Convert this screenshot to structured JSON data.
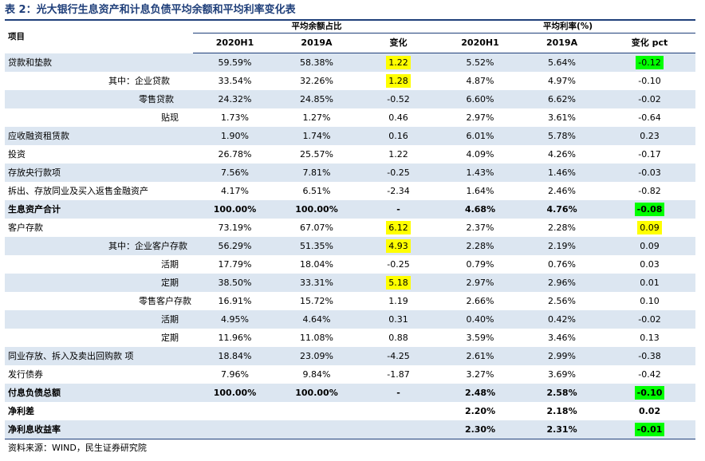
{
  "title": "表 2：光大银行生息资产和计息负债平均余额和平均利率变化表",
  "header": {
    "item": "项目",
    "group1": "平均余额占比",
    "group2": "平均利率(%)",
    "cols": [
      "2020H1",
      "2019A",
      "变化",
      "2020H1",
      "2019A",
      "变化 pct"
    ]
  },
  "rows": [
    {
      "name": "贷款和垫款",
      "indent": 0,
      "shade": true,
      "bold": false,
      "v": [
        "59.59%",
        "58.38%",
        "1.22",
        "5.52%",
        "5.64%",
        "-0.12"
      ],
      "hl": {
        "2": "yellow",
        "5": "green"
      }
    },
    {
      "name": "其中：企业贷款",
      "indent": 1,
      "shade": false,
      "bold": false,
      "v": [
        "33.54%",
        "32.26%",
        "1.28",
        "4.87%",
        "4.97%",
        "-0.10"
      ],
      "hl": {
        "2": "yellow"
      }
    },
    {
      "name": "零售贷款",
      "indent": 2,
      "shade": true,
      "bold": false,
      "v": [
        "24.32%",
        "24.85%",
        "-0.52",
        "6.60%",
        "6.62%",
        "-0.02"
      ],
      "hl": {}
    },
    {
      "name": "贴现",
      "indent": 3,
      "shade": false,
      "bold": false,
      "v": [
        "1.73%",
        "1.27%",
        "0.46",
        "2.97%",
        "3.61%",
        "-0.64"
      ],
      "hl": {}
    },
    {
      "name": "应收融资租赁款",
      "indent": 0,
      "shade": true,
      "bold": false,
      "v": [
        "1.90%",
        "1.74%",
        "0.16",
        "6.01%",
        "5.78%",
        "0.23"
      ],
      "hl": {}
    },
    {
      "name": "投资",
      "indent": 0,
      "shade": false,
      "bold": false,
      "v": [
        "26.78%",
        "25.57%",
        "1.22",
        "4.09%",
        "4.26%",
        "-0.17"
      ],
      "hl": {}
    },
    {
      "name": "存放央行款项",
      "indent": 0,
      "shade": true,
      "bold": false,
      "v": [
        "7.56%",
        "7.81%",
        "-0.25",
        "1.43%",
        "1.46%",
        "-0.03"
      ],
      "hl": {}
    },
    {
      "name": "拆出、存放同业及买入返售金融资产",
      "indent": 0,
      "shade": false,
      "bold": false,
      "v": [
        "4.17%",
        "6.51%",
        "-2.34",
        "1.64%",
        "2.46%",
        "-0.82"
      ],
      "hl": {}
    },
    {
      "name": "生息资产合计",
      "indent": 0,
      "shade": true,
      "bold": true,
      "v": [
        "100.00%",
        "100.00%",
        "-",
        "4.68%",
        "4.76%",
        "-0.08"
      ],
      "hl": {
        "5": "green"
      }
    },
    {
      "name": "客户存款",
      "indent": 0,
      "shade": false,
      "bold": false,
      "v": [
        "73.19%",
        "67.07%",
        "6.12",
        "2.37%",
        "2.28%",
        "0.09"
      ],
      "hl": {
        "2": "yellow",
        "5": "yellow"
      }
    },
    {
      "name": "其中：企业客户存款",
      "indent": 1,
      "shade": true,
      "bold": false,
      "v": [
        "56.29%",
        "51.35%",
        "4.93",
        "2.28%",
        "2.19%",
        "0.09"
      ],
      "hl": {
        "2": "yellow"
      }
    },
    {
      "name": "活期",
      "indent": 3,
      "shade": false,
      "bold": false,
      "v": [
        "17.79%",
        "18.04%",
        "-0.25",
        "0.79%",
        "0.76%",
        "0.03"
      ],
      "hl": {}
    },
    {
      "name": "定期",
      "indent": 3,
      "shade": true,
      "bold": false,
      "v": [
        "38.50%",
        "33.31%",
        "5.18",
        "2.97%",
        "2.96%",
        "0.01"
      ],
      "hl": {
        "2": "yellow"
      }
    },
    {
      "name": "零售客户存款",
      "indent": 2,
      "shade": false,
      "bold": false,
      "v": [
        "16.91%",
        "15.72%",
        "1.19",
        "2.66%",
        "2.56%",
        "0.10"
      ],
      "hl": {}
    },
    {
      "name": "活期",
      "indent": 3,
      "shade": true,
      "bold": false,
      "v": [
        "4.95%",
        "4.64%",
        "0.31",
        "0.40%",
        "0.42%",
        "-0.02"
      ],
      "hl": {}
    },
    {
      "name": "定期",
      "indent": 3,
      "shade": false,
      "bold": false,
      "v": [
        "11.96%",
        "11.08%",
        "0.88",
        "3.59%",
        "3.46%",
        "0.13"
      ],
      "hl": {}
    },
    {
      "name": "同业存放、拆入及卖出回购款 项",
      "indent": 0,
      "shade": true,
      "bold": false,
      "v": [
        "18.84%",
        "23.09%",
        "-4.25",
        "2.61%",
        "2.99%",
        "-0.38"
      ],
      "hl": {}
    },
    {
      "name": "发行债券",
      "indent": 0,
      "shade": false,
      "bold": false,
      "v": [
        "7.96%",
        "9.84%",
        "-1.87",
        "3.27%",
        "3.69%",
        "-0.42"
      ],
      "hl": {}
    },
    {
      "name": "付息负债总额",
      "indent": 0,
      "shade": true,
      "bold": true,
      "v": [
        "100.00%",
        "100.00%",
        "-",
        "2.48%",
        "2.58%",
        "-0.10"
      ],
      "hl": {
        "5": "green"
      }
    },
    {
      "name": "净利差",
      "indent": 0,
      "shade": false,
      "bold": true,
      "v": [
        "",
        "",
        "",
        "2.20%",
        "2.18%",
        "0.02"
      ],
      "hl": {}
    },
    {
      "name": "净利息收益率",
      "indent": 0,
      "shade": true,
      "bold": true,
      "v": [
        "",
        "",
        "",
        "2.30%",
        "2.31%",
        "-0.01"
      ],
      "hl": {
        "5": "green"
      }
    }
  ],
  "source": "资料来源：WIND，民生证券研究院"
}
